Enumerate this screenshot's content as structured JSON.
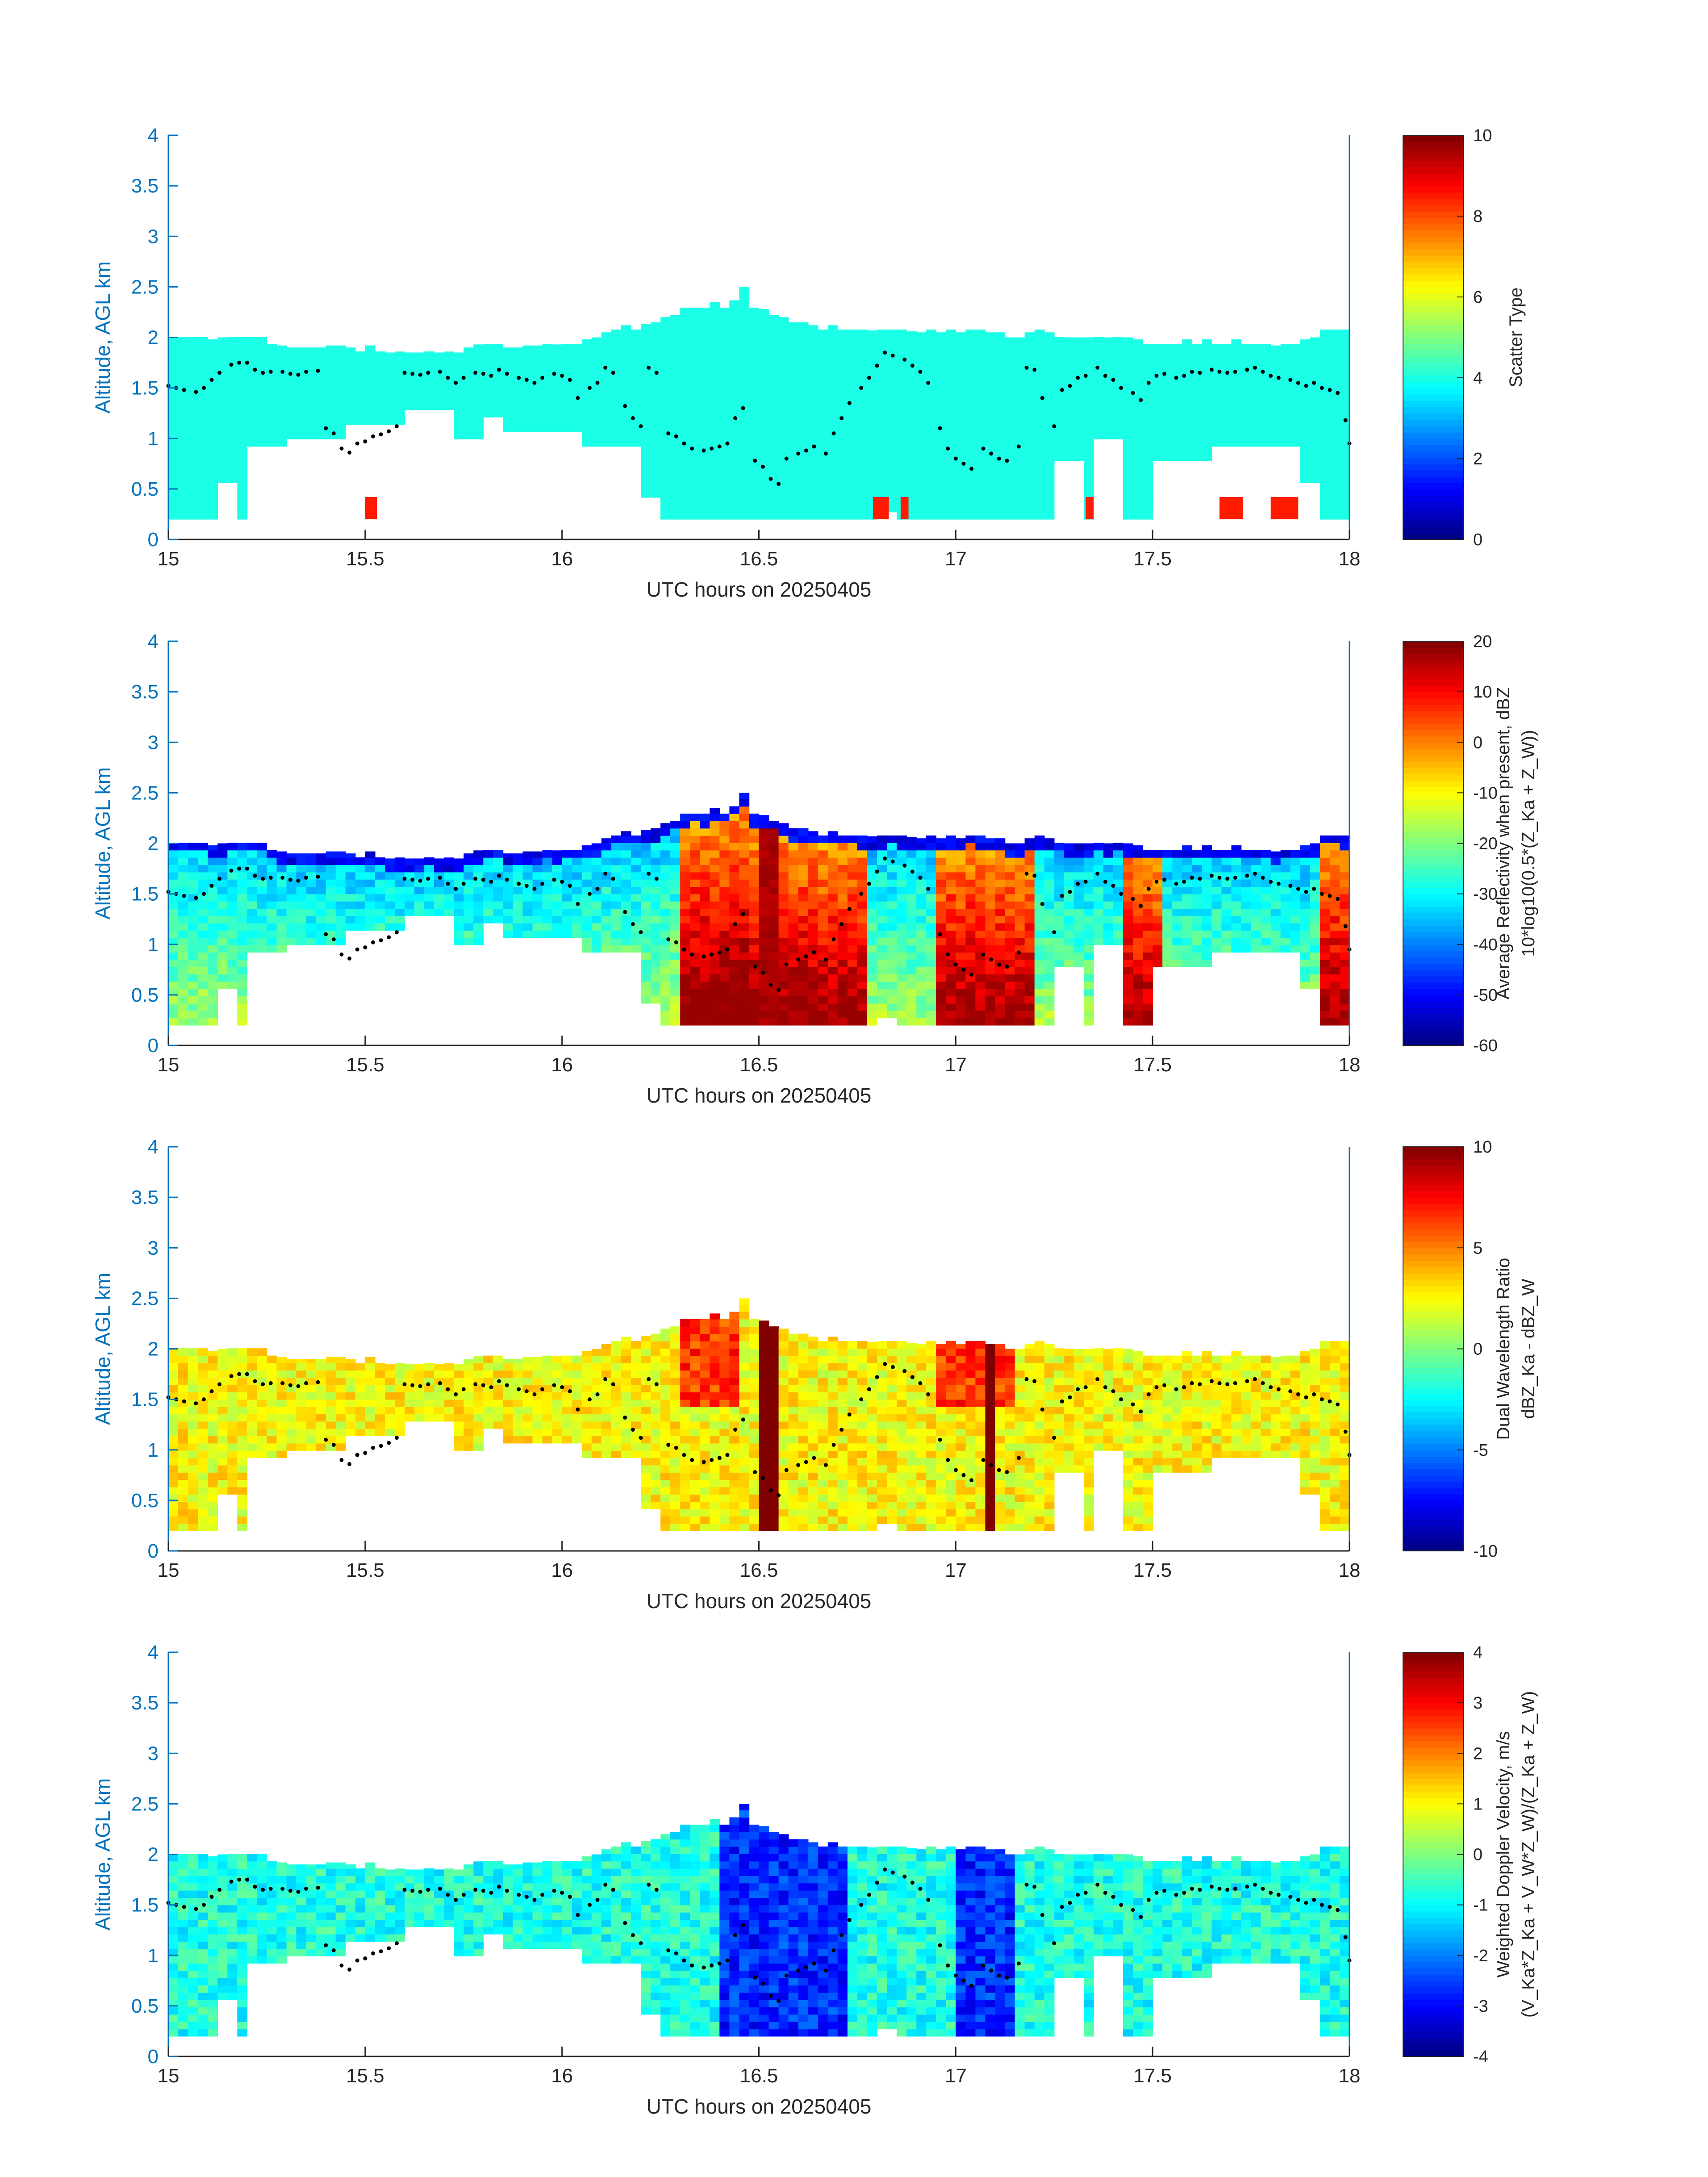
{
  "colors": {
    "axis_blue": "#0072bd",
    "text_dark": "#262626",
    "point": "#000000",
    "colormap": "jet"
  },
  "chart_data": [
    {
      "type": "heatmap",
      "panel": 1,
      "xlabel": "UTC hours on 20250405",
      "ylabel": "Altitude, AGL km",
      "xlim": [
        15,
        18
      ],
      "ylim": [
        0,
        4
      ],
      "xticks": [
        "15",
        "15.5",
        "16",
        "16.5",
        "17",
        "17.5",
        "18"
      ],
      "yticks": [
        "0",
        "0.5",
        "1",
        "1.5",
        "2",
        "2.5",
        "3",
        "3.5",
        "4"
      ],
      "colorbar": {
        "label_lines": [
          "Scatter Type"
        ],
        "range": [
          0,
          10
        ],
        "ticks": [
          "0",
          "2",
          "4",
          "6",
          "8",
          "10"
        ]
      },
      "field": "scatter",
      "dominant_value": 4,
      "secondary_value": 8.5,
      "secondary_patches_x": [
        [
          15.5,
          15.53
        ],
        [
          16.79,
          16.83
        ],
        [
          16.86,
          16.88
        ],
        [
          17.33,
          17.35
        ],
        [
          17.67,
          17.73
        ],
        [
          17.8,
          17.87
        ]
      ]
    },
    {
      "type": "heatmap",
      "panel": 2,
      "xlabel": "UTC hours on 20250405",
      "ylabel": "Altitude, AGL km",
      "xlim": [
        15,
        18
      ],
      "ylim": [
        0,
        4
      ],
      "xticks": [
        "15",
        "15.5",
        "16",
        "16.5",
        "17",
        "17.5",
        "18"
      ],
      "yticks": [
        "0",
        "0.5",
        "1",
        "1.5",
        "2",
        "2.5",
        "3",
        "3.5",
        "4"
      ],
      "colorbar": {
        "label_lines": [
          "Average Reflectivity when present, dBZ",
          "10*log10(0.5*(Z_Ka + Z_W))"
        ],
        "range": [
          -60,
          20
        ],
        "ticks": [
          "-60",
          "-50",
          "-40",
          "-30",
          "-20",
          "-10",
          "0",
          "10",
          "20"
        ]
      },
      "field": "reflectivity",
      "strong_columns_x": [
        [
          16.3,
          16.78
        ],
        [
          16.96,
          17.2
        ],
        [
          17.42,
          17.53
        ],
        [
          17.93,
          18.0
        ]
      ],
      "peak_x": 16.52,
      "peak_value": 15
    },
    {
      "type": "heatmap",
      "panel": 3,
      "xlabel": "UTC hours on 20250405",
      "ylabel": "Altitude, AGL km",
      "xlim": [
        15,
        18
      ],
      "ylim": [
        0,
        4
      ],
      "xticks": [
        "15",
        "15.5",
        "16",
        "16.5",
        "17",
        "17.5",
        "18"
      ],
      "yticks": [
        "0",
        "0.5",
        "1",
        "1.5",
        "2",
        "2.5",
        "3",
        "3.5",
        "4"
      ],
      "colorbar": {
        "label_lines": [
          "Dual Wavelength Ratio",
          "dBZ_Ka - dBZ_W"
        ],
        "range": [
          -10,
          10
        ],
        "ticks": [
          "-10",
          "-5",
          "0",
          "5",
          "10"
        ]
      },
      "field": "dwr",
      "typical_value": 2.5,
      "saturated_columns_x": [
        [
          16.5,
          16.55
        ],
        [
          17.07,
          17.1
        ]
      ],
      "saturated_value": 10
    },
    {
      "type": "heatmap",
      "panel": 4,
      "xlabel": "UTC hours on 20250405",
      "ylabel": "Altitude, AGL km",
      "xlim": [
        15,
        18
      ],
      "ylim": [
        0,
        4
      ],
      "xticks": [
        "15",
        "15.5",
        "16",
        "16.5",
        "17",
        "17.5",
        "18"
      ],
      "yticks": [
        "0",
        "0.5",
        "1",
        "1.5",
        "2",
        "2.5",
        "3",
        "3.5",
        "4"
      ],
      "colorbar": {
        "label_lines": [
          "Weighted Doppler Velocity, m/s",
          "(V_Ka*Z_Ka + V_W*Z_W)/(Z_Ka + Z_W)"
        ],
        "range": [
          -4,
          4
        ],
        "ticks": [
          "-4",
          "-3",
          "-2",
          "-1",
          "0",
          "1",
          "2",
          "3",
          "4"
        ]
      },
      "field": "velocity",
      "typical_value": -0.8,
      "strong_downward_columns_x": [
        [
          16.4,
          16.72
        ],
        [
          17.0,
          17.15
        ]
      ],
      "strong_downward_value": -3.3
    }
  ],
  "overlay": {
    "description_type": "black dots",
    "points": [
      [
        15.0,
        1.52
      ],
      [
        15.02,
        1.5
      ],
      [
        15.04,
        1.48
      ],
      [
        15.07,
        1.46
      ],
      [
        15.09,
        1.5
      ],
      [
        15.11,
        1.58
      ],
      [
        15.13,
        1.65
      ],
      [
        15.16,
        1.73
      ],
      [
        15.18,
        1.75
      ],
      [
        15.2,
        1.75
      ],
      [
        15.22,
        1.68
      ],
      [
        15.24,
        1.65
      ],
      [
        15.26,
        1.66
      ],
      [
        15.29,
        1.66
      ],
      [
        15.31,
        1.64
      ],
      [
        15.33,
        1.63
      ],
      [
        15.35,
        1.66
      ],
      [
        15.38,
        1.67
      ],
      [
        15.4,
        1.1
      ],
      [
        15.42,
        1.05
      ],
      [
        15.44,
        0.9
      ],
      [
        15.46,
        0.86
      ],
      [
        15.48,
        0.95
      ],
      [
        15.5,
        0.97
      ],
      [
        15.52,
        1.02
      ],
      [
        15.54,
        1.04
      ],
      [
        15.56,
        1.07
      ],
      [
        15.58,
        1.12
      ],
      [
        15.6,
        1.65
      ],
      [
        15.62,
        1.64
      ],
      [
        15.64,
        1.63
      ],
      [
        15.66,
        1.65
      ],
      [
        15.69,
        1.66
      ],
      [
        15.71,
        1.6
      ],
      [
        15.73,
        1.55
      ],
      [
        15.75,
        1.6
      ],
      [
        15.78,
        1.65
      ],
      [
        15.8,
        1.64
      ],
      [
        15.82,
        1.62
      ],
      [
        15.84,
        1.68
      ],
      [
        15.86,
        1.64
      ],
      [
        15.89,
        1.6
      ],
      [
        15.91,
        1.58
      ],
      [
        15.93,
        1.55
      ],
      [
        15.95,
        1.6
      ],
      [
        15.98,
        1.64
      ],
      [
        16.0,
        1.62
      ],
      [
        16.02,
        1.58
      ],
      [
        16.04,
        1.4
      ],
      [
        16.07,
        1.5
      ],
      [
        16.09,
        1.55
      ],
      [
        16.11,
        1.7
      ],
      [
        16.13,
        1.65
      ],
      [
        16.16,
        1.32
      ],
      [
        16.18,
        1.2
      ],
      [
        16.2,
        1.12
      ],
      [
        16.22,
        1.7
      ],
      [
        16.24,
        1.65
      ],
      [
        16.27,
        1.05
      ],
      [
        16.29,
        1.02
      ],
      [
        16.31,
        0.95
      ],
      [
        16.33,
        0.9
      ],
      [
        16.36,
        0.88
      ],
      [
        16.38,
        0.9
      ],
      [
        16.4,
        0.92
      ],
      [
        16.42,
        0.95
      ],
      [
        16.44,
        1.2
      ],
      [
        16.46,
        1.3
      ],
      [
        16.49,
        0.78
      ],
      [
        16.51,
        0.72
      ],
      [
        16.53,
        0.6
      ],
      [
        16.55,
        0.55
      ],
      [
        16.57,
        0.8
      ],
      [
        16.6,
        0.85
      ],
      [
        16.62,
        0.88
      ],
      [
        16.64,
        0.92
      ],
      [
        16.67,
        0.85
      ],
      [
        16.69,
        1.05
      ],
      [
        16.71,
        1.2
      ],
      [
        16.73,
        1.35
      ],
      [
        16.76,
        1.5
      ],
      [
        16.78,
        1.6
      ],
      [
        16.8,
        1.72
      ],
      [
        16.82,
        1.85
      ],
      [
        16.84,
        1.82
      ],
      [
        16.87,
        1.78
      ],
      [
        16.89,
        1.72
      ],
      [
        16.91,
        1.66
      ],
      [
        16.93,
        1.55
      ],
      [
        16.96,
        1.1
      ],
      [
        16.98,
        0.9
      ],
      [
        17.0,
        0.8
      ],
      [
        17.02,
        0.75
      ],
      [
        17.04,
        0.7
      ],
      [
        17.07,
        0.9
      ],
      [
        17.09,
        0.85
      ],
      [
        17.11,
        0.8
      ],
      [
        17.13,
        0.78
      ],
      [
        17.16,
        0.92
      ],
      [
        17.18,
        1.7
      ],
      [
        17.2,
        1.68
      ],
      [
        17.22,
        1.4
      ],
      [
        17.25,
        1.12
      ],
      [
        17.27,
        1.48
      ],
      [
        17.29,
        1.52
      ],
      [
        17.31,
        1.6
      ],
      [
        17.33,
        1.62
      ],
      [
        17.36,
        1.7
      ],
      [
        17.38,
        1.62
      ],
      [
        17.4,
        1.58
      ],
      [
        17.42,
        1.5
      ],
      [
        17.45,
        1.45
      ],
      [
        17.47,
        1.38
      ],
      [
        17.49,
        1.55
      ],
      [
        17.51,
        1.62
      ],
      [
        17.53,
        1.64
      ],
      [
        17.56,
        1.6
      ],
      [
        17.58,
        1.62
      ],
      [
        17.6,
        1.66
      ],
      [
        17.62,
        1.65
      ],
      [
        17.65,
        1.68
      ],
      [
        17.67,
        1.66
      ],
      [
        17.69,
        1.65
      ],
      [
        17.71,
        1.66
      ],
      [
        17.74,
        1.68
      ],
      [
        17.76,
        1.7
      ],
      [
        17.78,
        1.66
      ],
      [
        17.8,
        1.62
      ],
      [
        17.82,
        1.6
      ],
      [
        17.85,
        1.58
      ],
      [
        17.87,
        1.55
      ],
      [
        17.89,
        1.52
      ],
      [
        17.91,
        1.55
      ],
      [
        17.93,
        1.5
      ],
      [
        17.95,
        1.48
      ],
      [
        17.97,
        1.45
      ],
      [
        17.99,
        1.18
      ],
      [
        18.0,
        0.95
      ]
    ]
  },
  "cloud_mask": {
    "x_step_hours": 0.025,
    "base_km_default": 0.2,
    "top_km": [
      2.02,
      2.03,
      2.03,
      2.02,
      1.98,
      2.0,
      2.02,
      2.02,
      2.02,
      2.02,
      1.95,
      1.92,
      1.9,
      1.9,
      1.9,
      1.9,
      1.92,
      1.92,
      1.9,
      1.88,
      1.92,
      1.88,
      1.85,
      1.86,
      1.85,
      1.85,
      1.88,
      1.85,
      1.86,
      1.85,
      1.9,
      1.93,
      1.95,
      1.95,
      1.9,
      1.9,
      1.92,
      1.92,
      1.95,
      1.93,
      1.95,
      1.95,
      1.98,
      2.0,
      2.05,
      2.1,
      2.12,
      2.1,
      2.13,
      2.15,
      2.2,
      2.25,
      2.3,
      2.32,
      2.3,
      2.35,
      2.32,
      2.38,
      2.5,
      2.3,
      2.28,
      2.25,
      2.2,
      2.15,
      2.15,
      2.12,
      2.1,
      2.12,
      2.1,
      2.1,
      2.08,
      2.07,
      2.08,
      2.1,
      2.08,
      2.06,
      2.05,
      2.08,
      2.05,
      2.08,
      2.05,
      2.1,
      2.08,
      2.05,
      2.05,
      2.0,
      2.0,
      2.05,
      2.08,
      2.05,
      2.02,
      2.0,
      2.0,
      2.0,
      2.02,
      2.0,
      2.02,
      2.0,
      1.98,
      1.95,
      1.95,
      1.95,
      1.95,
      1.98,
      1.95,
      1.98,
      1.95,
      1.95,
      1.98,
      1.95,
      1.95,
      1.95,
      1.92,
      1.95,
      1.95,
      1.98,
      2.0,
      2.1,
      2.1,
      2.08,
      2.1
    ],
    "bottom_km": [
      0.2,
      0.2,
      0.2,
      0.2,
      0.2,
      0.2,
      0.2,
      0.2,
      0.2,
      0.2,
      0.2,
      0.2,
      0.2,
      0.2,
      0.2,
      0.2,
      0.2,
      0.2,
      0.2,
      0.2,
      0.2,
      0.2,
      0.2,
      0.2,
      0.2,
      0.2,
      0.2,
      0.2,
      0.2,
      0.2,
      0.2,
      0.2,
      0.2,
      0.2,
      0.2,
      0.2,
      0.2,
      0.2,
      0.2,
      0.2,
      0.2,
      0.2,
      0.2,
      0.2,
      0.2,
      0.2,
      0.2,
      0.2,
      0.2,
      0.2,
      0.2,
      0.2,
      0.2,
      0.2,
      0.2,
      0.2,
      0.2,
      0.2,
      0.2,
      0.2,
      0.2,
      0.2,
      0.2,
      0.2,
      0.2,
      0.2,
      0.2,
      0.2,
      0.2,
      0.2,
      0.2,
      0.2,
      0.2,
      0.2,
      0.2,
      0.2,
      0.2,
      0.2,
      0.2,
      0.2,
      0.2,
      0.2,
      0.2,
      0.2,
      0.2,
      0.2,
      0.2,
      0.2,
      0.2,
      0.2,
      0.2,
      0.2,
      0.2,
      0.2,
      0.2,
      0.2,
      0.2,
      0.2,
      0.2,
      0.2,
      0.2,
      0.2,
      0.2,
      0.2,
      0.2,
      0.2,
      0.2,
      0.2,
      0.2,
      0.2,
      0.2,
      0.2,
      0.2,
      0.2,
      0.2,
      0.2,
      0.2,
      0.2,
      0.2,
      0.2,
      0.2
    ],
    "gaps": [
      {
        "x": [
          15.13,
          15.18
        ],
        "below_km": 0.55
      },
      {
        "x": [
          15.21,
          15.3
        ],
        "below_km": 0.95
      },
      {
        "x": [
          15.3,
          15.45
        ],
        "below_km": 1.0
      },
      {
        "x": [
          15.45,
          15.6
        ],
        "below_km": 1.15
      },
      {
        "x": [
          15.6,
          15.73
        ],
        "below_km": 1.3
      },
      {
        "x": [
          15.73,
          15.8
        ],
        "below_km": 1.0
      },
      {
        "x": [
          15.8,
          15.85
        ],
        "below_km": 1.2
      },
      {
        "x": [
          15.85,
          16.05
        ],
        "below_km": 1.05
      },
      {
        "x": [
          16.05,
          16.2
        ],
        "below_km": 0.95
      },
      {
        "x": [
          16.2,
          16.25
        ],
        "below_km": 0.45
      },
      {
        "x": [
          16.8,
          16.85
        ],
        "below_km": 0.3
      },
      {
        "x": [
          17.25,
          17.33
        ],
        "below_km": 0.75
      },
      {
        "x": [
          17.35,
          17.42
        ],
        "below_km": 1.0
      },
      {
        "x": [
          17.5,
          17.65
        ],
        "below_km": 0.8
      },
      {
        "x": [
          17.65,
          17.88
        ],
        "below_km": 0.9
      },
      {
        "x": [
          17.88,
          17.93
        ],
        "below_km": 0.55
      }
    ]
  }
}
